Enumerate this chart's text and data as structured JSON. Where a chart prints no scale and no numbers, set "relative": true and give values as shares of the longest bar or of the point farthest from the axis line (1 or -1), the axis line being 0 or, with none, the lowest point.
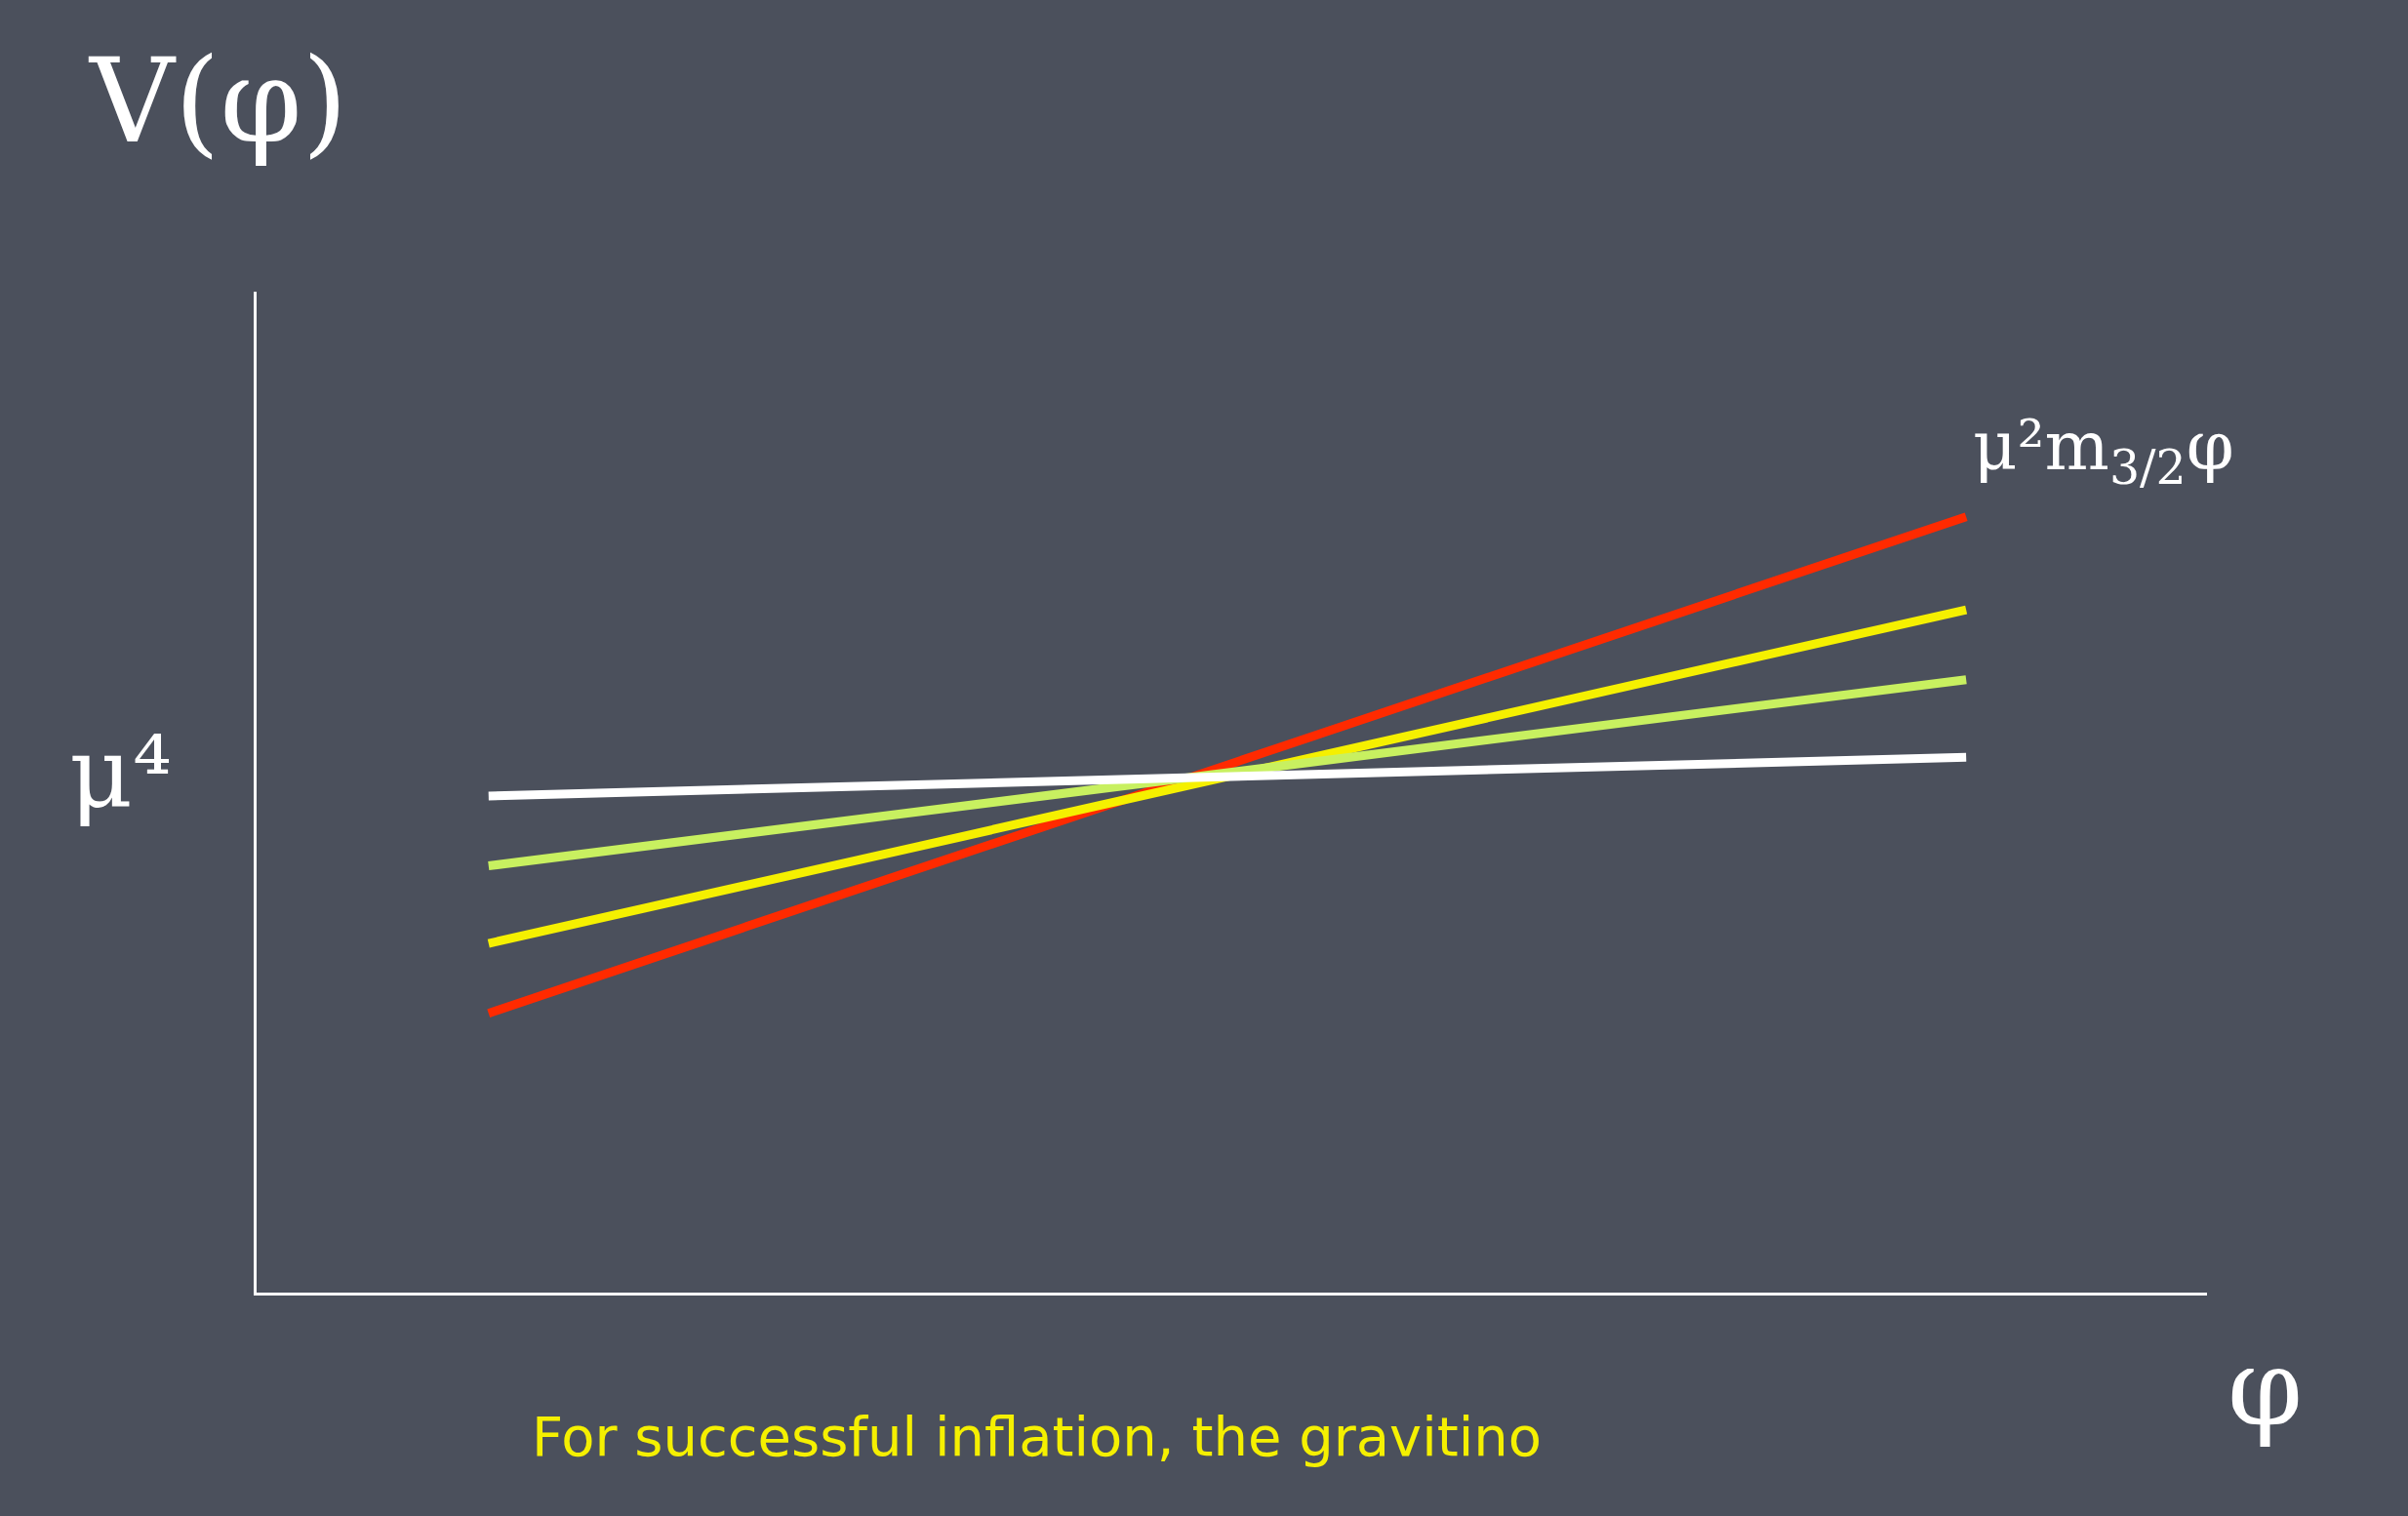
{
  "chart_data": {
    "type": "line",
    "relative": true,
    "xlabel": "φ",
    "ylabel": "V(φ)",
    "categories": [
      null,
      null
    ],
    "series": [
      {
        "name": "μ²m$_{3/2}$φ",
        "color": "#ff2a00",
        "values": [
          0.36,
          1.0
        ]
      },
      {
        "color": "#f5f000",
        "values": [
          0.45,
          0.88
        ]
      },
      {
        "color": "#c8f060",
        "values": [
          0.55,
          0.79
        ]
      },
      {
        "color": "#ffffff",
        "values": [
          0.64,
          0.69
        ]
      }
    ],
    "annotations": [
      "μ⁴",
      "For successful inflation, the gravitino"
    ],
    "legend": false,
    "grid": false,
    "marker": "none",
    "line_style": "solid"
  }
}
